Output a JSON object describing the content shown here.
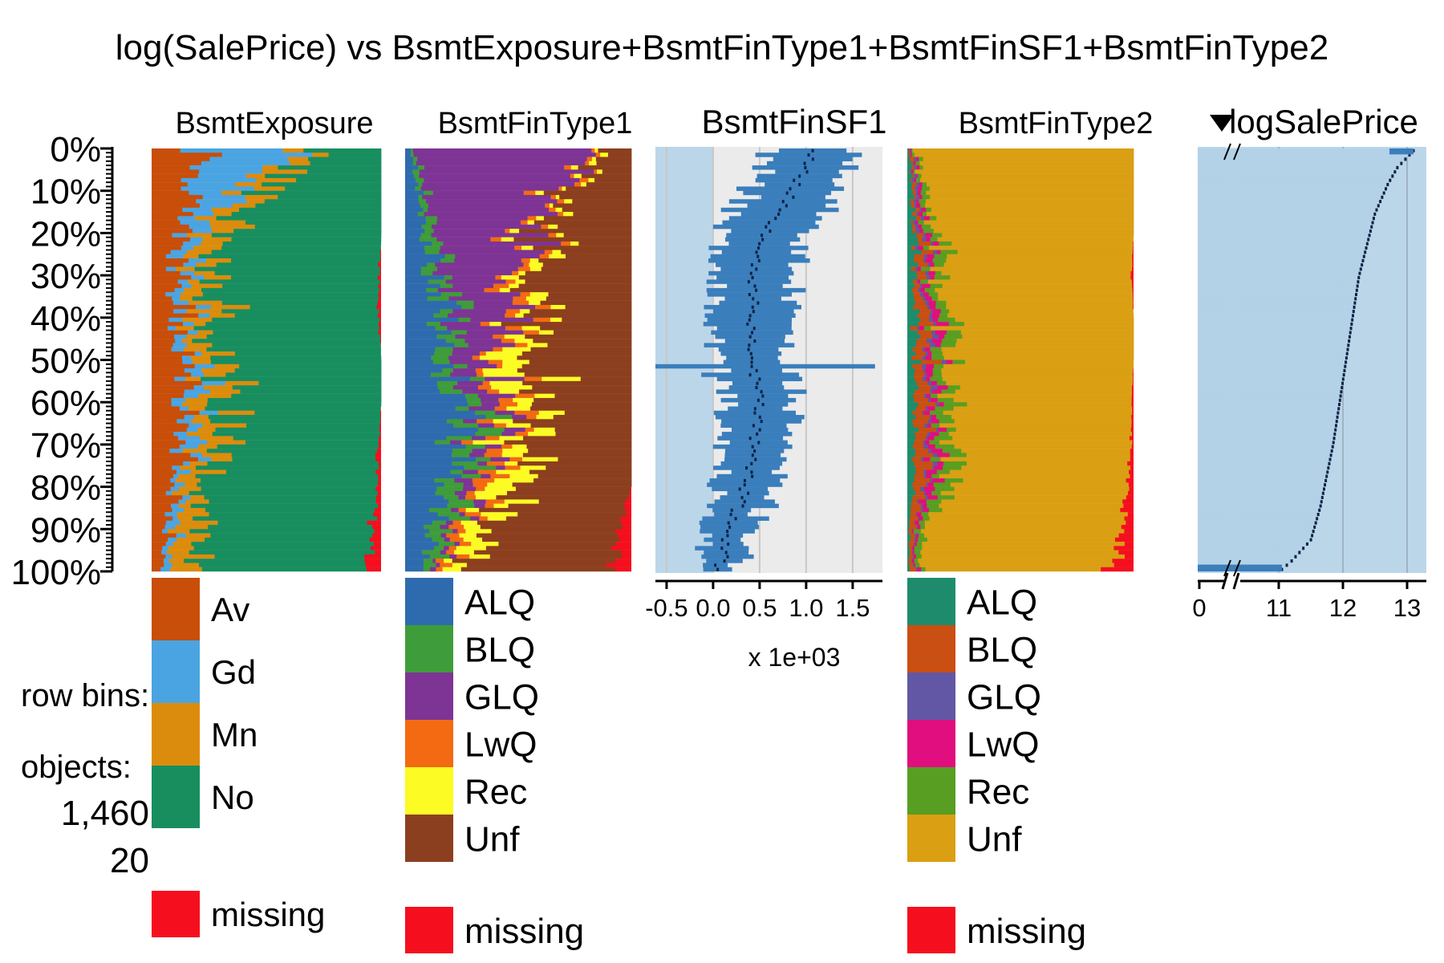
{
  "chart_data": {
    "type": "tableplot",
    "title": "log(SalePrice) vs BsmtExposure+BsmtFinType1+BsmtFinSF1+BsmtFinType2",
    "y_axis": {
      "ticks": [
        "0%",
        "10%",
        "20%",
        "30%",
        "40%",
        "50%",
        "60%",
        "70%",
        "80%",
        "90%",
        "100%"
      ]
    },
    "info": {
      "row_bins_label": "row bins:",
      "objects_label": "objects:",
      "objects_value": "1,460",
      "bins_value": "20"
    },
    "panels": {
      "bsmt_exposure": {
        "title": "BsmtExposure",
        "categories": [
          "Av",
          "Gd",
          "Mn",
          "No"
        ],
        "colors": [
          "#C84E0A",
          "#4BA4E2",
          "#DC8C0C",
          "#188E5F"
        ],
        "missing_label": "missing",
        "missing_color": "#F50F1E",
        "profile": [
          [
            0.2,
            0.4,
            0.1,
            0.3,
            0.0
          ],
          [
            0.18,
            0.22,
            0.12,
            0.48,
            0.0
          ],
          [
            0.15,
            0.08,
            0.12,
            0.65,
            0.0
          ],
          [
            0.12,
            0.06,
            0.1,
            0.72,
            0.01
          ],
          [
            0.1,
            0.05,
            0.09,
            0.75,
            0.01
          ],
          [
            0.12,
            0.05,
            0.09,
            0.74,
            0.0
          ],
          [
            0.14,
            0.06,
            0.1,
            0.7,
            0.0
          ],
          [
            0.13,
            0.05,
            0.09,
            0.72,
            0.01
          ],
          [
            0.11,
            0.04,
            0.09,
            0.74,
            0.02
          ],
          [
            0.06,
            0.03,
            0.1,
            0.78,
            0.03
          ],
          [
            0.04,
            0.03,
            0.12,
            0.75,
            0.06
          ]
        ]
      },
      "bsmt_fin_type1": {
        "title": "BsmtFinType1",
        "categories": [
          "ALQ",
          "BLQ",
          "GLQ",
          "LwQ",
          "Rec",
          "Unf"
        ],
        "colors": [
          "#2E6BAE",
          "#3F9C3A",
          "#7E3495",
          "#F36A12",
          "#FCFB24",
          "#8C3F1E"
        ],
        "missing_label": "missing",
        "missing_color": "#F50F1E",
        "profile": [
          [
            0.04,
            0.02,
            0.75,
            0.02,
            0.03,
            0.14,
            0.0
          ],
          [
            0.06,
            0.03,
            0.58,
            0.03,
            0.03,
            0.27,
            0.0
          ],
          [
            0.09,
            0.05,
            0.42,
            0.03,
            0.04,
            0.37,
            0.0
          ],
          [
            0.13,
            0.07,
            0.3,
            0.05,
            0.06,
            0.39,
            0.0
          ],
          [
            0.16,
            0.07,
            0.22,
            0.06,
            0.07,
            0.42,
            0.0
          ],
          [
            0.18,
            0.08,
            0.14,
            0.05,
            0.14,
            0.41,
            0.0
          ],
          [
            0.24,
            0.08,
            0.1,
            0.06,
            0.12,
            0.4,
            0.0
          ],
          [
            0.22,
            0.1,
            0.07,
            0.06,
            0.11,
            0.44,
            0.0
          ],
          [
            0.18,
            0.11,
            0.05,
            0.07,
            0.12,
            0.47,
            0.0
          ],
          [
            0.12,
            0.07,
            0.03,
            0.05,
            0.1,
            0.58,
            0.05
          ],
          [
            0.08,
            0.05,
            0.02,
            0.04,
            0.07,
            0.67,
            0.07
          ]
        ]
      },
      "bsmt_fin_sf1": {
        "title": "BsmtFinSF1",
        "ticks": [
          "-0.5",
          "0.0",
          "0.5",
          "1.0",
          "1.5"
        ],
        "xlim": [
          -0.62,
          1.82
        ],
        "scale_label": "x 1e+03",
        "profile_mean": [
          [
            0,
            1.1
          ],
          [
            0.1,
            0.84
          ],
          [
            0.2,
            0.58
          ],
          [
            0.3,
            0.43
          ],
          [
            0.4,
            0.42
          ],
          [
            0.5,
            0.42
          ],
          [
            0.6,
            0.5
          ],
          [
            0.7,
            0.45
          ],
          [
            0.8,
            0.35
          ],
          [
            0.9,
            0.18
          ],
          [
            1.0,
            0.06
          ]
        ],
        "profile_sd": [
          [
            0,
            0.55
          ],
          [
            0.1,
            0.55
          ],
          [
            0.2,
            0.5
          ],
          [
            0.3,
            0.42
          ],
          [
            0.4,
            0.42
          ],
          [
            0.5,
            0.42
          ],
          [
            0.6,
            0.4
          ],
          [
            0.7,
            0.35
          ],
          [
            0.8,
            0.32
          ],
          [
            0.9,
            0.28
          ],
          [
            1.0,
            0.2
          ]
        ]
      },
      "bsmt_fin_type2": {
        "title": "BsmtFinType2",
        "categories": [
          "ALQ",
          "BLQ",
          "GLQ",
          "LwQ",
          "Rec",
          "Unf"
        ],
        "colors": [
          "#1E8C6C",
          "#C94F12",
          "#6257A4",
          "#E00E7E",
          "#589E22",
          "#DA9F12"
        ],
        "missing_label": "missing",
        "missing_color": "#F50F1E",
        "profile": [
          [
            0.01,
            0.01,
            0.005,
            0.005,
            0.01,
            0.97,
            0.0
          ],
          [
            0.02,
            0.01,
            0.01,
            0.01,
            0.02,
            0.93,
            0.0
          ],
          [
            0.03,
            0.02,
            0.01,
            0.02,
            0.03,
            0.89,
            0.0
          ],
          [
            0.03,
            0.03,
            0.01,
            0.02,
            0.04,
            0.86,
            0.01
          ],
          [
            0.03,
            0.04,
            0.01,
            0.03,
            0.04,
            0.85,
            0.0
          ],
          [
            0.03,
            0.05,
            0.02,
            0.03,
            0.05,
            0.82,
            0.0
          ],
          [
            0.03,
            0.05,
            0.01,
            0.03,
            0.06,
            0.81,
            0.01
          ],
          [
            0.03,
            0.05,
            0.01,
            0.03,
            0.06,
            0.81,
            0.01
          ],
          [
            0.02,
            0.04,
            0.01,
            0.03,
            0.05,
            0.83,
            0.02
          ],
          [
            0.01,
            0.02,
            0.005,
            0.01,
            0.03,
            0.865,
            0.05
          ],
          [
            0.01,
            0.02,
            0.005,
            0.01,
            0.02,
            0.845,
            0.09
          ]
        ]
      },
      "log_sale_price": {
        "title": "logSalePrice",
        "sorted": "descending",
        "ticks": [
          "0",
          "11",
          "12",
          "13"
        ],
        "xlim": [
          10.4,
          13.3
        ],
        "axis_break": true,
        "profile_mean": [
          [
            0,
            13.1
          ],
          [
            0.04,
            12.85
          ],
          [
            0.08,
            12.7
          ],
          [
            0.15,
            12.5
          ],
          [
            0.3,
            12.25
          ],
          [
            0.5,
            12.05
          ],
          [
            0.7,
            11.85
          ],
          [
            0.85,
            11.65
          ],
          [
            0.93,
            11.5
          ],
          [
            0.98,
            11.2
          ],
          [
            1.0,
            11.05
          ]
        ]
      }
    }
  }
}
